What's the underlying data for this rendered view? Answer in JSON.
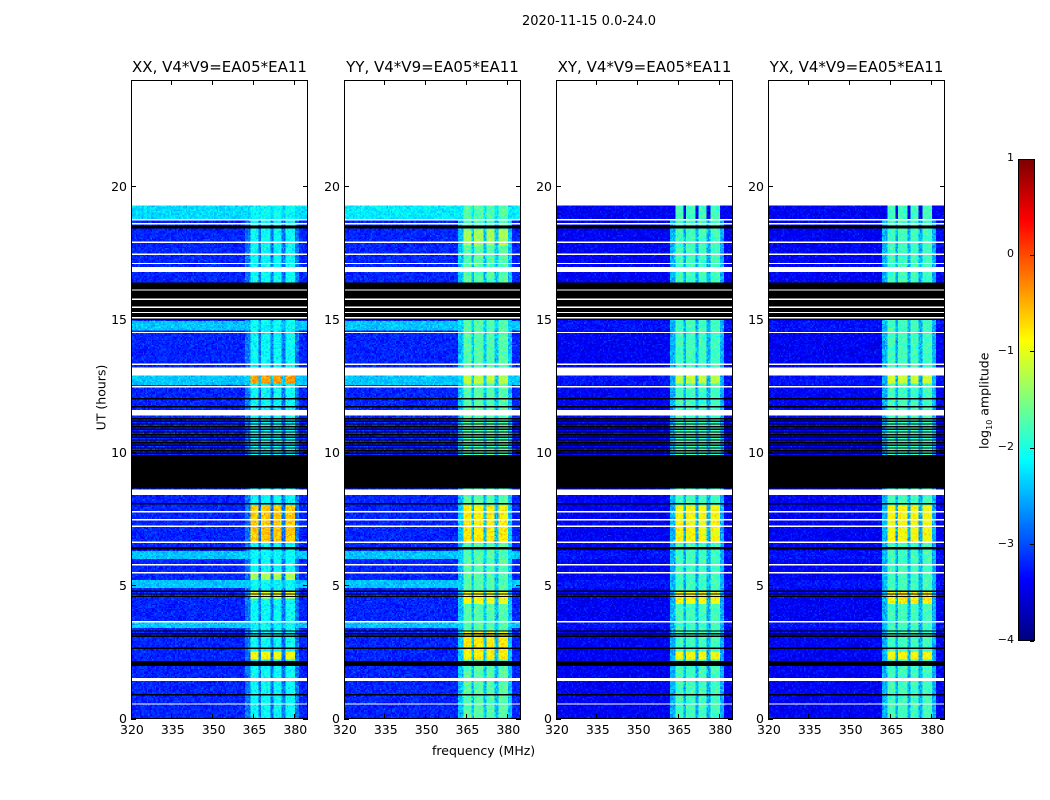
{
  "chart_data": {
    "type": "heatmap",
    "title": "2020-11-15 0.0-24.0",
    "xlabel": "frequency (MHz)",
    "ylabel": "UT (hours)",
    "xlim": [
      320,
      385
    ],
    "ylim": [
      0,
      24
    ],
    "xticks": [
      320,
      335,
      350,
      365,
      380
    ],
    "yticks": [
      0,
      5,
      10,
      15,
      20
    ],
    "data_end_hour": 19.3,
    "rfi_bands_mhz": [
      [
        364,
        367
      ],
      [
        368,
        371.5
      ],
      [
        372.5,
        375.5
      ],
      [
        377,
        380.5
      ]
    ],
    "colorbar": {
      "label_prefix": "log",
      "label_sub": "10",
      "label_suffix": " amplitude",
      "range": [
        -4,
        1
      ],
      "ticks": [
        1,
        0,
        -1,
        -2,
        -3,
        -4
      ],
      "colormap": "jet"
    },
    "segments": [
      {
        "from": 18.75,
        "to": 18.8,
        "kind": "flag"
      },
      {
        "from": 18.62,
        "to": 18.67,
        "kind": "flag"
      },
      {
        "from": 18.45,
        "to": 18.55,
        "kind": "zero"
      },
      {
        "from": 17.9,
        "to": 17.97,
        "kind": "flag"
      },
      {
        "from": 17.45,
        "to": 17.52,
        "kind": "flag"
      },
      {
        "from": 17.08,
        "to": 17.13,
        "kind": "flag"
      },
      {
        "from": 16.8,
        "to": 16.98,
        "kind": "flag"
      },
      {
        "from": 15.0,
        "to": 16.4,
        "kind": "zero"
      },
      {
        "from": 16.1,
        "to": 16.15,
        "kind": "flag"
      },
      {
        "from": 15.75,
        "to": 15.8,
        "kind": "flag"
      },
      {
        "from": 15.45,
        "to": 15.5,
        "kind": "flag"
      },
      {
        "from": 15.25,
        "to": 15.3,
        "kind": "flag"
      },
      {
        "from": 15.05,
        "to": 15.1,
        "kind": "flag"
      },
      {
        "from": 14.6,
        "to": 14.95,
        "kind": "light"
      },
      {
        "from": 14.5,
        "to": 14.55,
        "kind": "flag"
      },
      {
        "from": 13.3,
        "to": 13.36,
        "kind": "flag"
      },
      {
        "from": 12.9,
        "to": 13.2,
        "kind": "flag"
      },
      {
        "from": 12.55,
        "to": 12.88,
        "kind": "light"
      },
      {
        "from": 12.45,
        "to": 12.52,
        "kind": "flag"
      },
      {
        "from": 12.0,
        "to": 12.06,
        "kind": "zero"
      },
      {
        "from": 11.7,
        "to": 11.76,
        "kind": "zero"
      },
      {
        "from": 11.4,
        "to": 11.62,
        "kind": "flag"
      },
      {
        "from": 9.35,
        "to": 11.3,
        "kind": "stripes"
      },
      {
        "from": 8.65,
        "to": 9.9,
        "kind": "zero"
      },
      {
        "from": 8.4,
        "to": 8.6,
        "kind": "flag"
      },
      {
        "from": 8.05,
        "to": 8.12,
        "kind": "zero"
      },
      {
        "from": 7.75,
        "to": 7.8,
        "kind": "flag"
      },
      {
        "from": 7.45,
        "to": 7.5,
        "kind": "flag"
      },
      {
        "from": 7.2,
        "to": 7.25,
        "kind": "flag"
      },
      {
        "from": 6.6,
        "to": 6.65,
        "kind": "flag"
      },
      {
        "from": 6.35,
        "to": 6.45,
        "kind": "zero"
      },
      {
        "from": 6.0,
        "to": 6.3,
        "kind": "light"
      },
      {
        "from": 5.75,
        "to": 5.8,
        "kind": "flag"
      },
      {
        "from": 5.45,
        "to": 5.5,
        "kind": "flag"
      },
      {
        "from": 4.9,
        "to": 5.2,
        "kind": "light"
      },
      {
        "from": 4.5,
        "to": 4.8,
        "kind": "stripes"
      },
      {
        "from": 3.6,
        "to": 3.65,
        "kind": "flag"
      },
      {
        "from": 3.4,
        "to": 3.58,
        "kind": "light"
      },
      {
        "from": 3.0,
        "to": 3.35,
        "kind": "stripes"
      },
      {
        "from": 2.6,
        "to": 2.65,
        "kind": "zero"
      },
      {
        "from": 1.95,
        "to": 2.15,
        "kind": "zero"
      },
      {
        "from": 1.42,
        "to": 1.48,
        "kind": "flag"
      },
      {
        "from": 0.85,
        "to": 0.9,
        "kind": "zero"
      },
      {
        "from": 0.48,
        "to": 0.53,
        "kind": "flag"
      }
    ],
    "panels": [
      {
        "title": "XX, V4*V9=EA05*EA11",
        "base": -3.2,
        "band": -2.1,
        "light": -2.4,
        "top_band": -2.3,
        "bright": [
          {
            "from": 12.6,
            "to": 12.88,
            "level": -0.4
          },
          {
            "from": 6.6,
            "to": 8.0,
            "level": -0.6
          },
          {
            "from": 4.5,
            "to": 4.8,
            "level": -0.9
          },
          {
            "from": 2.2,
            "to": 2.5,
            "level": -0.9
          },
          {
            "from": 5.2,
            "to": 5.5,
            "level": -1.3
          }
        ]
      },
      {
        "title": "YY, V4*V9=EA05*EA11",
        "base": -3.2,
        "band": -1.7,
        "light": -2.4,
        "top_band": -2.2,
        "bright": [
          {
            "from": 6.6,
            "to": 8.0,
            "level": -0.8
          },
          {
            "from": 4.3,
            "to": 4.8,
            "level": -0.9
          },
          {
            "from": 2.2,
            "to": 3.3,
            "level": -0.8
          },
          {
            "from": 17.8,
            "to": 18.4,
            "level": -1.3
          },
          {
            "from": 12.6,
            "to": 12.88,
            "level": -1.2
          }
        ]
      },
      {
        "title": "XY, V4*V9=EA05*EA11",
        "base": -3.4,
        "band": -1.8,
        "light": -3.3,
        "top_band": -3.4,
        "bright": [
          {
            "from": 6.6,
            "to": 8.0,
            "level": -0.9
          },
          {
            "from": 4.3,
            "to": 4.8,
            "level": -0.9
          },
          {
            "from": 2.2,
            "to": 2.5,
            "level": -0.9
          },
          {
            "from": 12.6,
            "to": 12.88,
            "level": -1.2
          }
        ]
      },
      {
        "title": "YX, V4*V9=EA05*EA11",
        "base": -3.4,
        "band": -1.8,
        "light": -3.3,
        "top_band": -3.4,
        "bright": [
          {
            "from": 6.6,
            "to": 8.0,
            "level": -0.9
          },
          {
            "from": 4.3,
            "to": 4.8,
            "level": -0.8
          },
          {
            "from": 2.2,
            "to": 2.5,
            "level": -0.9
          },
          {
            "from": 12.6,
            "to": 12.88,
            "level": -1.1
          }
        ]
      }
    ]
  }
}
